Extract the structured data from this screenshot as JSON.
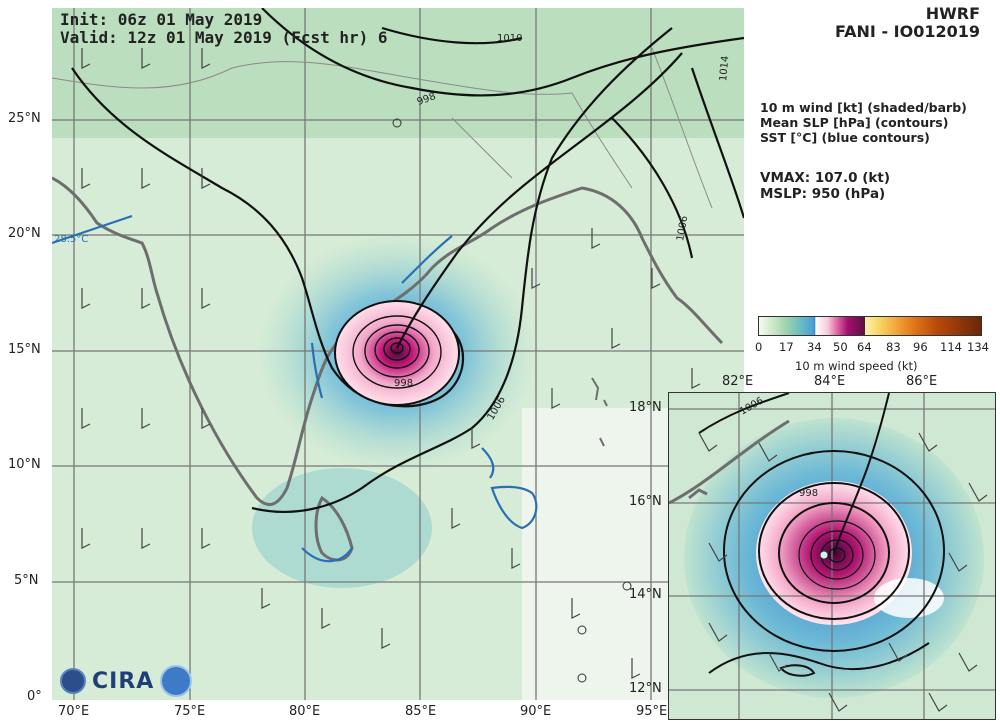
{
  "header": {
    "init": "Init:  06z 01 May 2019",
    "valid": "Valid: 12z 01 May 2019 (Fcst hr) 6",
    "model": "HWRF",
    "storm": "FANI - IO012019"
  },
  "info": {
    "fields": [
      "10 m wind [kt] (shaded/barb)",
      "Mean SLP [hPa] (contours)",
      "SST [°C] (blue contours)"
    ],
    "vmax": "VMAX: 107.0 (kt)",
    "mslp": "MSLP:  950 (hPa)"
  },
  "colorbar": {
    "ticks": [
      "0",
      "17",
      "34",
      "50",
      "64",
      "83",
      "96",
      "114",
      "134"
    ],
    "label": "10 m wind speed (kt)"
  },
  "main_map": {
    "lon_ticks": [
      "70°E",
      "75°E",
      "80°E",
      "85°E",
      "90°E",
      "95°E"
    ],
    "lat_ticks": [
      "25°N",
      "20°N",
      "15°N",
      "10°N",
      "5°N",
      "0°"
    ],
    "contour_labels": [
      "998",
      "1006",
      "1006",
      "1010",
      "1014",
      "998"
    ],
    "sst_label": "28.5°C",
    "logo": "CIRA"
  },
  "inset_map": {
    "lon_ticks": [
      "82°E",
      "84°E",
      "86°E"
    ],
    "lat_ticks": [
      "18°N",
      "16°N",
      "14°N",
      "12°N"
    ],
    "contour_labels": [
      "998",
      "1006"
    ]
  }
}
